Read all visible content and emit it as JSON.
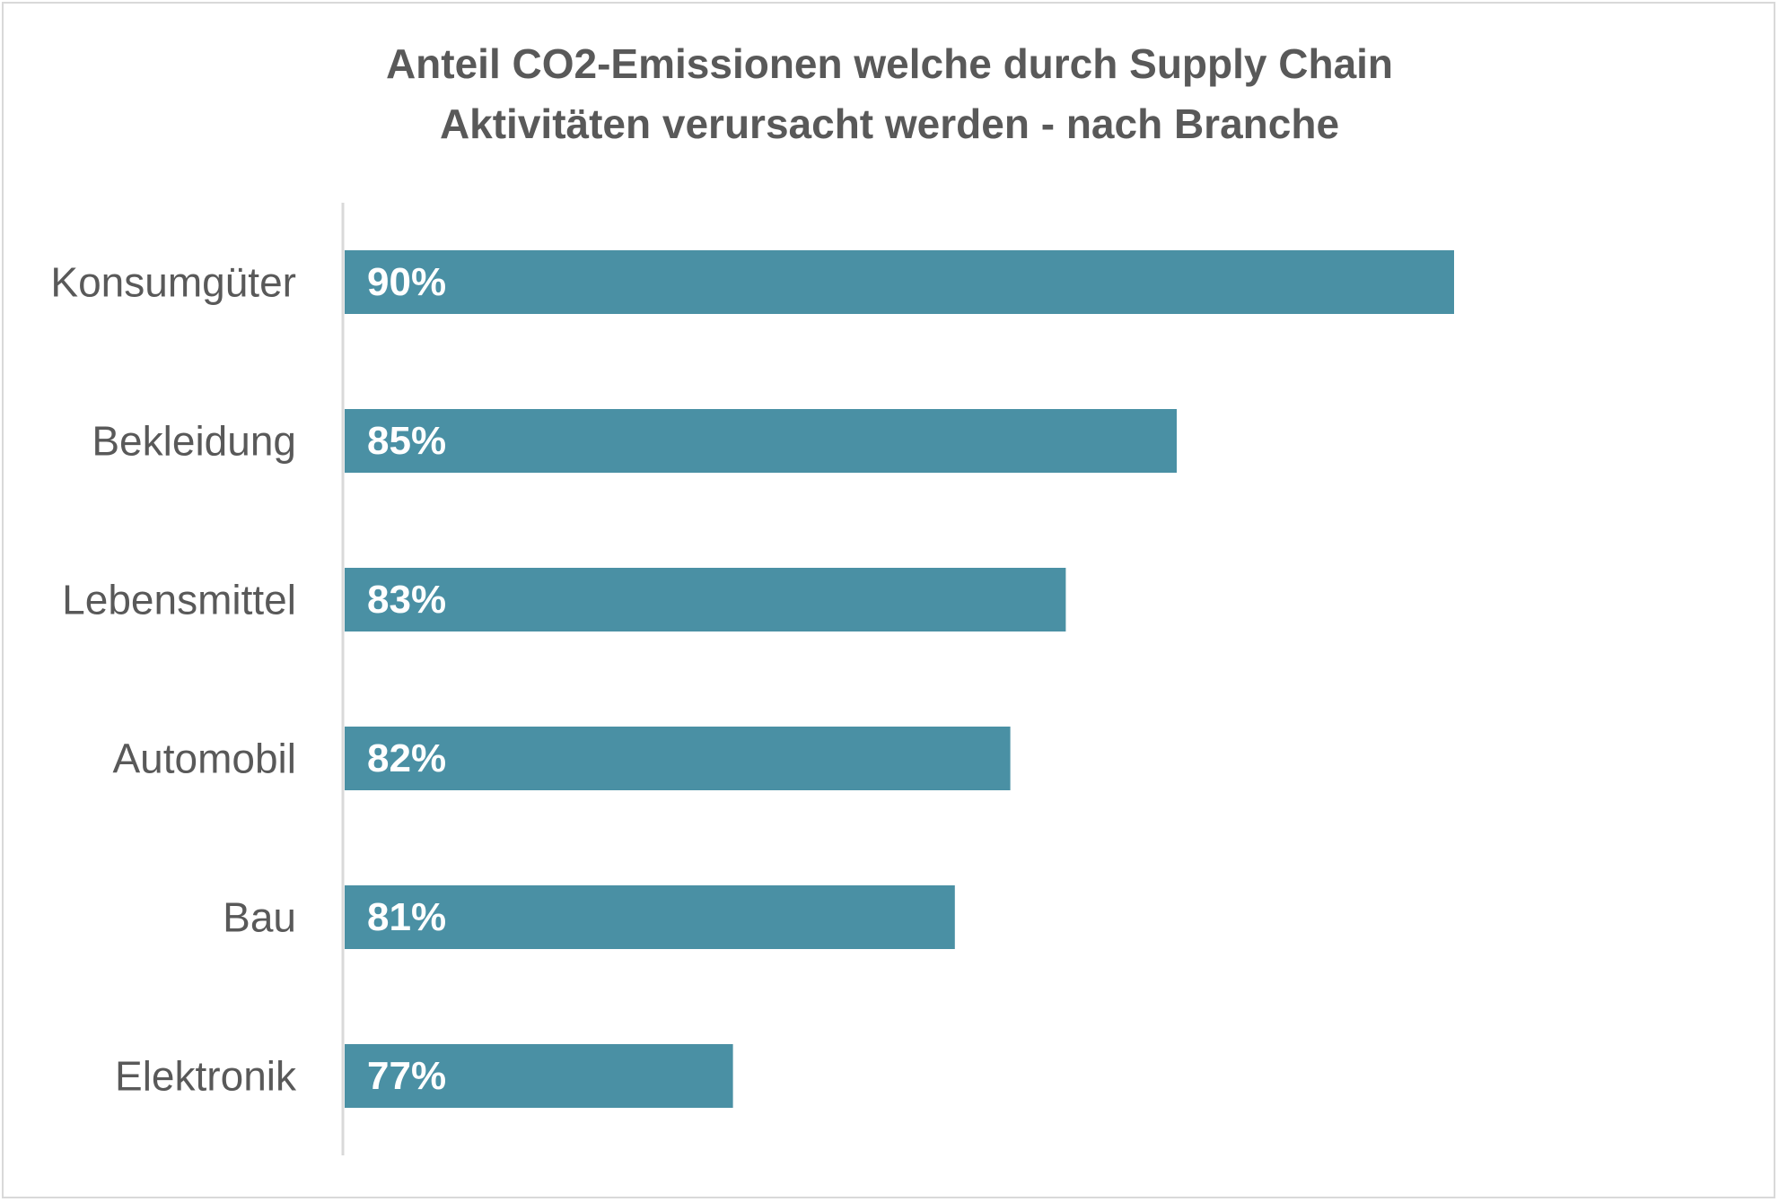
{
  "chart_data": {
    "type": "bar",
    "orientation": "horizontal",
    "title_lines": [
      "Anteil CO2-Emissionen welche durch Supply Chain",
      "Aktivitäten verursacht werden - nach Branche"
    ],
    "categories": [
      "Konsumgüter",
      "Bekleidung",
      "Lebensmittel",
      "Automobil",
      "Bau",
      "Elektronik"
    ],
    "values": [
      90,
      85,
      83,
      82,
      81,
      77
    ],
    "data_labels": [
      "90%",
      "85%",
      "83%",
      "82%",
      "81%",
      "77%"
    ],
    "unit": "%",
    "xlim": [
      70,
      90
    ],
    "xlabel": "",
    "ylabel": "",
    "grid": false,
    "legend": "none",
    "bar_color": "#4a90a4",
    "axis_color": "#d9d9d9",
    "text_color": "#595959"
  }
}
